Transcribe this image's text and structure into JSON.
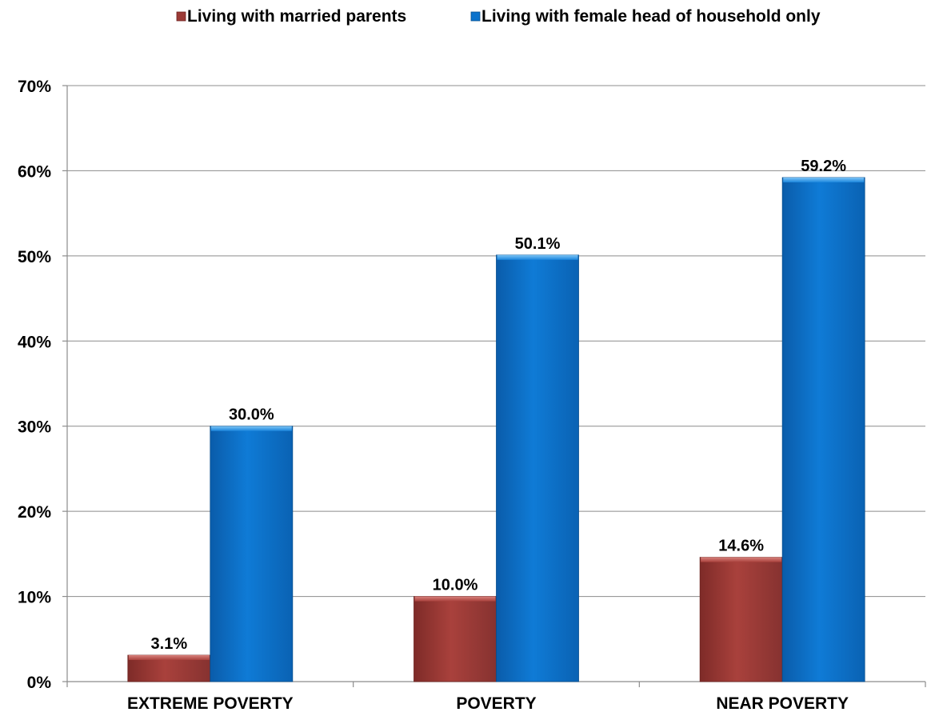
{
  "chart_data": {
    "type": "bar",
    "categories": [
      "EXTREME POVERTY",
      "POVERTY",
      "NEAR POVERTY"
    ],
    "series": [
      {
        "name": "Living with married parents",
        "color": "#9B3A36",
        "values": [
          3.1,
          10.0,
          14.6
        ],
        "labels": [
          "3.1%",
          "10.0%",
          "14.6%"
        ]
      },
      {
        "name": "Living with female head of household only",
        "color": "#0A72CC",
        "values": [
          30.0,
          50.1,
          59.2
        ],
        "labels": [
          "30.0%",
          "50.1%",
          "59.2%"
        ]
      }
    ],
    "ylim": [
      0,
      70
    ],
    "yticks": [
      "0%",
      "10%",
      "20%",
      "30%",
      "40%",
      "50%",
      "60%",
      "70%"
    ],
    "grid": true,
    "legend": "top",
    "title": "",
    "xlabel": "",
    "ylabel": ""
  }
}
